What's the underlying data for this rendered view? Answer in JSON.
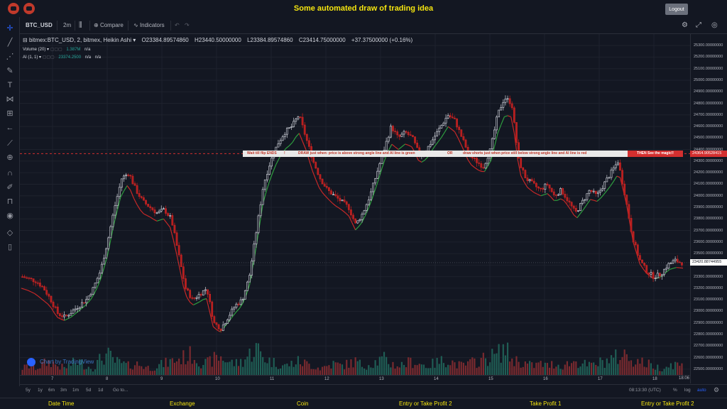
{
  "header": {
    "title": "Some automated draw of trading idea",
    "logout_label": "Logout"
  },
  "toolbar": {
    "symbol": "BTC_USD",
    "interval": "2m",
    "compare_label": "Compare",
    "indicators_label": "Indicators"
  },
  "legend": {
    "series_title": "bitmex:BTC_USD, 2, bitmex, Heikin Ashi",
    "open": "O23384.89574860",
    "high": "H23440.50000000",
    "low": "L23384.89574860",
    "close": "C23414.75000000",
    "change": "+37.37500000 (+0.16%)",
    "volume_label": "Volume (20)",
    "volume_value": "1.387M",
    "volume_na": "n/a",
    "ai_label": "AI (1, 1)",
    "ai_value": "23374.2500",
    "ai_na1": "n/a",
    "ai_na2": "n/a"
  },
  "annotation": {
    "text1": "Wait till flip ENDS",
    "text2": "DRAW just when:  price is above strong angle line and AI line is green",
    "text3": "OR",
    "text4": "draw shorts just when price still below strong angle line and AI line is red",
    "text5": "THEN See the magic!!"
  },
  "price_axis": {
    "ticks": [
      "25300.00000000",
      "25200.00000000",
      "25100.00000000",
      "25000.00000000",
      "24900.00000000",
      "24800.00000000",
      "24700.00000000",
      "24600.00000000",
      "24500.00000000",
      "24400.00000000",
      "24300.00000000",
      "24200.00000000",
      "24100.00000000",
      "24000.00000000",
      "23900.00000000",
      "23800.00000000",
      "23700.00000000",
      "23600.00000000",
      "23500.00000000",
      "23400.00000000",
      "23300.00000000",
      "23200.00000000",
      "23100.00000000",
      "23000.00000000",
      "22900.00000000",
      "22800.00000000",
      "22700.00000000",
      "22600.00000000",
      "22500.00000000"
    ],
    "line_badge": "24364.90528415",
    "last_badge": "23420.88744955"
  },
  "time_axis": {
    "ticks": [
      "7",
      "8",
      "9",
      "10",
      "11",
      "12",
      "13",
      "14",
      "15",
      "16",
      "17",
      "18"
    ],
    "end_label": "18:06"
  },
  "bottom": {
    "ranges": [
      "5y",
      "1y",
      "6m",
      "3m",
      "1m",
      "5d",
      "1d"
    ],
    "goto": "Go to...",
    "clock": "08:13:30 (UTC)",
    "pct": "%",
    "log": "log",
    "auto": "auto"
  },
  "watermark": "Chart by TradingView",
  "footer": {
    "columns": [
      "Date Time",
      "Exchange",
      "Coin",
      "Entry or Take Profit 2",
      "Take Profit 1",
      "Entry or Take Profit 2"
    ]
  },
  "chart_data": {
    "type": "candlestick",
    "chart_style": "Heikin Ashi",
    "symbol": "bitmex:BTC_USD",
    "interval": "2",
    "ylim": [
      22450,
      25350
    ],
    "x_ticks": [
      "7",
      "8",
      "9",
      "10",
      "11",
      "12",
      "13",
      "14",
      "15",
      "16",
      "17",
      "18"
    ],
    "price_path": [
      23300,
      23280,
      23260,
      23200,
      23100,
      22980,
      22950,
      23000,
      23050,
      23100,
      23200,
      23350,
      23600,
      23900,
      24150,
      24200,
      24050,
      23950,
      23900,
      23850,
      23880,
      23800,
      23500,
      23200,
      23100,
      23150,
      23200,
      22900,
      22850,
      22950,
      23050,
      23100,
      23300,
      23700,
      24100,
      24300,
      24450,
      24550,
      24600,
      24700,
      24500,
      24300,
      24150,
      24050,
      24000,
      23950,
      23900,
      23750,
      23850,
      24000,
      24200,
      24400,
      24600,
      24500,
      24550,
      24500,
      24350,
      24400,
      24500,
      24600,
      24700,
      24650,
      24500,
      24350,
      24300,
      24250,
      24400,
      24700,
      24850,
      24800,
      24300,
      24150,
      24100,
      24050,
      24100,
      24000,
      24050,
      23950,
      23850,
      23950,
      24050,
      24000,
      24100,
      24200,
      24300,
      24000,
      23650,
      23450,
      23350,
      23300,
      23320,
      23400,
      23440,
      23420
    ],
    "ai_line_path": [
      23200,
      23180,
      23150,
      23100,
      23050,
      22950,
      22920,
      22950,
      23000,
      23050,
      23120,
      23250,
      23450,
      23750,
      24000,
      24100,
      23950,
      23850,
      23820,
      23780,
      23800,
      23720,
      23450,
      23150,
      23050,
      23080,
      23120,
      22860,
      22820,
      22900,
      22980,
      23050,
      23200,
      23550,
      23950,
      24150,
      24300,
      24400,
      24450,
      24550,
      24400,
      24200,
      24050,
      23980,
      23920,
      23880,
      23830,
      23700,
      23780,
      23920,
      24100,
      24300,
      24450,
      24400,
      24450,
      24420,
      24280,
      24320,
      24420,
      24500,
      24600,
      24550,
      24420,
      24280,
      24230,
      24200,
      24300,
      24550,
      24700,
      24680,
      24200,
      24080,
      24030,
      24000,
      24020,
      23950,
      23980,
      23900,
      23800,
      23880,
      23970,
      23950,
      24020,
      24100,
      24200,
      23950,
      23600,
      23400,
      23320,
      23280,
      23300,
      23360,
      23380,
      23374
    ],
    "horizontal_line": 24364.90528415,
    "last_price": 23420.88744955,
    "volume": [
      3,
      4,
      3,
      5,
      6,
      4,
      3,
      5,
      6,
      4,
      3,
      7,
      9,
      6,
      5,
      4,
      5,
      4,
      3,
      4,
      5,
      6,
      7,
      8,
      9,
      6,
      5,
      7,
      8,
      6,
      5,
      6,
      9,
      12,
      8,
      6,
      5,
      4,
      5,
      6,
      5,
      4,
      3,
      4,
      5,
      4,
      5,
      6,
      4,
      5,
      6,
      7,
      5,
      4,
      5,
      6,
      5,
      4,
      5,
      6,
      7,
      5,
      4,
      5,
      6,
      7,
      8,
      9,
      12,
      7,
      6,
      5,
      4,
      5,
      4,
      5,
      4,
      5,
      6,
      5,
      4,
      5,
      6,
      7,
      8,
      9,
      7,
      6,
      5,
      4,
      3,
      4,
      5,
      4
    ]
  }
}
